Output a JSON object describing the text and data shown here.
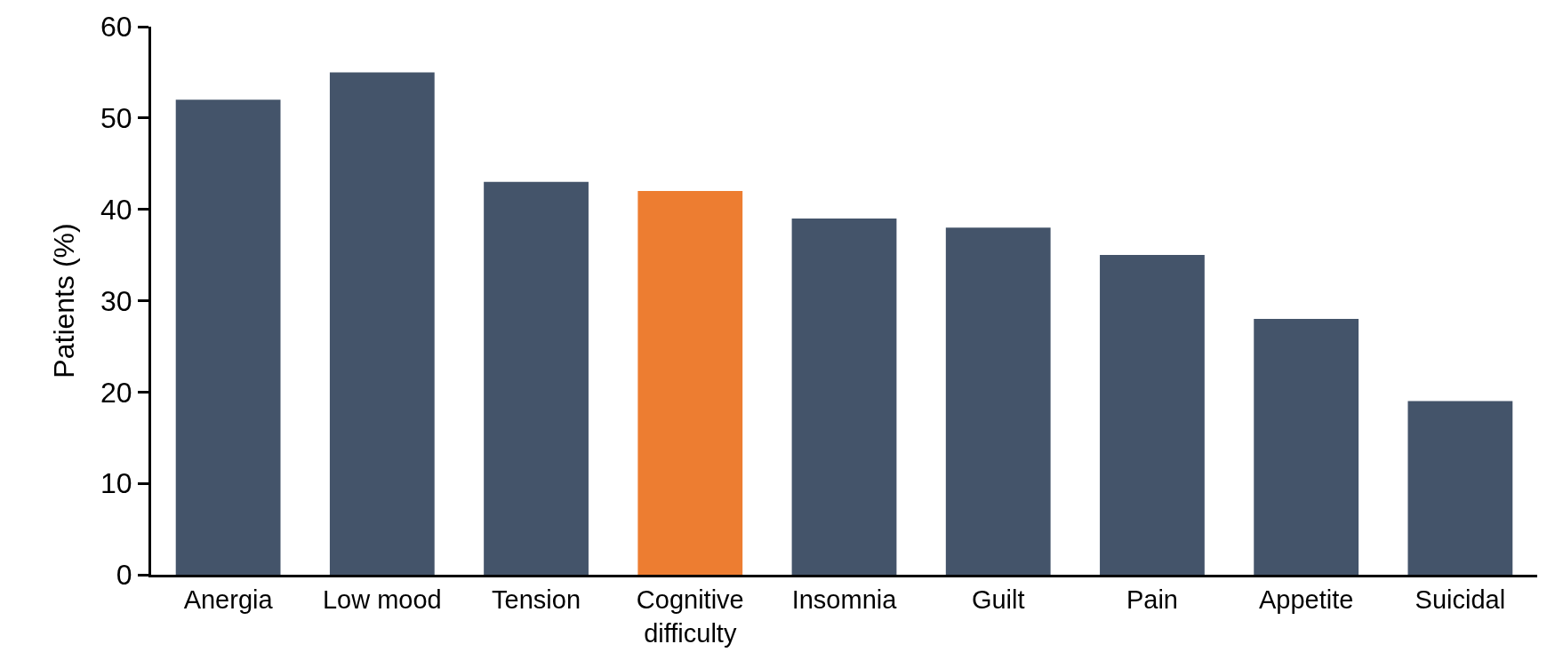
{
  "chart_data": {
    "type": "bar",
    "ylabel": "Patients (%)",
    "categories": [
      "Anergia",
      "Low mood",
      "Tension",
      "Cognitive difficulty",
      "Insomnia",
      "Guilt",
      "Pain",
      "Appetite",
      "Suicidal"
    ],
    "values": [
      52,
      55,
      43,
      42,
      39,
      38,
      35,
      28,
      19
    ],
    "colors": [
      "#44546a",
      "#44546a",
      "#44546a",
      "#ed7d31",
      "#44546a",
      "#44546a",
      "#44546a",
      "#44546a",
      "#44546a"
    ],
    "ylim": [
      0,
      60
    ],
    "yticks": [
      0,
      10,
      20,
      30,
      40,
      50,
      60
    ]
  }
}
